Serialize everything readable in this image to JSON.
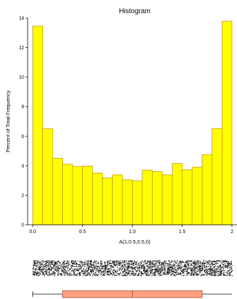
{
  "chart_data": {
    "type": "bar",
    "title": "Histogram",
    "xlabel": "A(1,0.5,0.5,0)",
    "ylabel": "Percent of Total Frequency",
    "xlim": [
      -0.05,
      2.05
    ],
    "ylim": [
      0,
      14
    ],
    "x_ticks": [
      {
        "value": 0.0,
        "label": "0.0"
      },
      {
        "value": 0.5,
        "label": "0.5"
      },
      {
        "value": 1.0,
        "label": "1.0"
      },
      {
        "value": 1.5,
        "label": "1.5"
      },
      {
        "value": 2.0,
        "label": "2"
      }
    ],
    "y_ticks": [
      {
        "value": 0,
        "label": "0"
      },
      {
        "value": 2,
        "label": "2"
      },
      {
        "value": 4,
        "label": "4"
      },
      {
        "value": 6,
        "label": "6"
      },
      {
        "value": 8,
        "label": "8"
      },
      {
        "value": 10,
        "label": "10"
      },
      {
        "value": 12,
        "label": "12"
      },
      {
        "value": 14,
        "label": "14"
      }
    ],
    "grid": false,
    "bin_edges": [
      0.0,
      0.1,
      0.2,
      0.3,
      0.4,
      0.5,
      0.6,
      0.7,
      0.8,
      0.9,
      1.0,
      1.1,
      1.2,
      1.3,
      1.4,
      1.5,
      1.6,
      1.7,
      1.8,
      1.9,
      2.0
    ],
    "values": [
      13.45,
      6.5,
      4.5,
      4.1,
      3.95,
      3.97,
      3.5,
      3.17,
      3.38,
      3.05,
      2.97,
      3.7,
      3.6,
      3.38,
      4.15,
      3.72,
      3.9,
      4.75,
      6.52,
      13.78
    ],
    "boxplot": {
      "min": 0.0,
      "q1": 0.3,
      "median": 1.0,
      "q3": 1.7,
      "max": 2.0
    },
    "colors": {
      "bar_fill": "#ffff00",
      "bar_stroke": "#c8960a",
      "box_fill": "#ff9f80",
      "box_stroke": "#a05030",
      "axis": "#000000",
      "rug": "#000000"
    }
  }
}
